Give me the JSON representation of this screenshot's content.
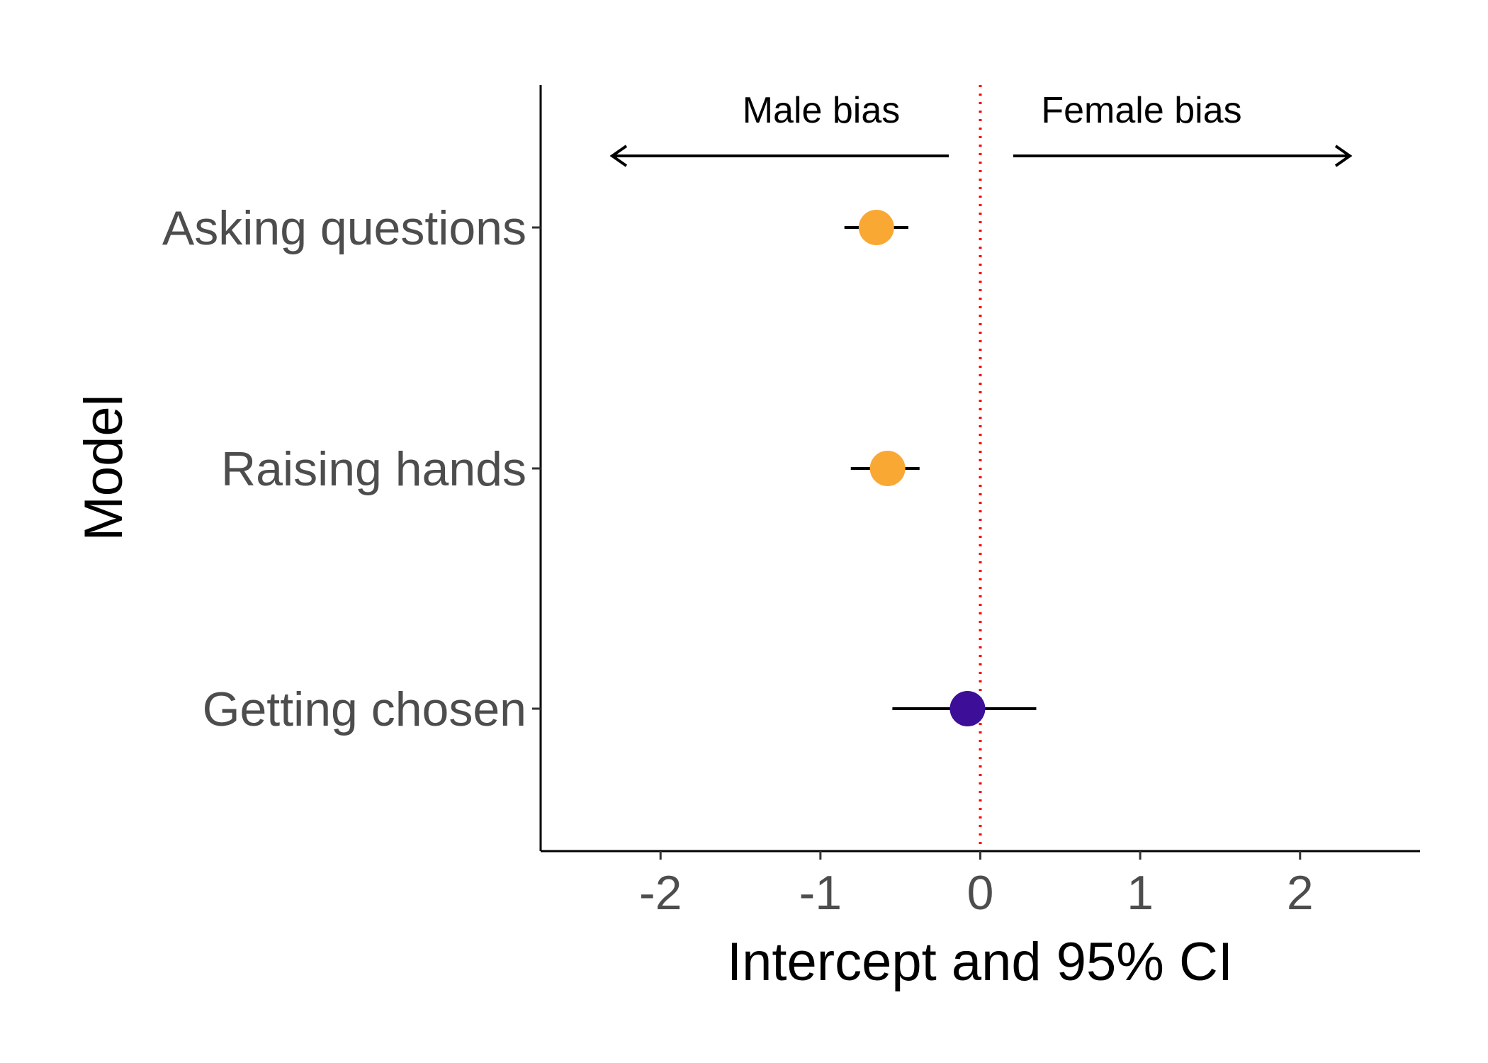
{
  "chart_data": {
    "type": "forest",
    "xlabel": "Intercept and 95% CI",
    "ylabel": "Model",
    "xlim": [
      -2.75,
      2.75
    ],
    "xticks": [
      -2,
      -1,
      0,
      1,
      2
    ],
    "xtick_labels": [
      "-2",
      "-1",
      "0",
      "1",
      "2"
    ],
    "grid": false,
    "reference_line": {
      "x": 0,
      "color": "#ff0000",
      "style": "dotted"
    },
    "annotations": [
      {
        "text": "Male bias",
        "direction": "left"
      },
      {
        "text": "Female bias",
        "direction": "right"
      }
    ],
    "rows": [
      {
        "label": "Asking questions",
        "estimate": -0.65,
        "ci_low": -0.85,
        "ci_high": -0.45,
        "color": "#f9a833"
      },
      {
        "label": "Raising hands",
        "estimate": -0.58,
        "ci_low": -0.81,
        "ci_high": -0.38,
        "color": "#f9a833"
      },
      {
        "label": "Getting chosen",
        "estimate": -0.08,
        "ci_low": -0.55,
        "ci_high": 0.35,
        "color": "#3d0f99"
      }
    ]
  }
}
